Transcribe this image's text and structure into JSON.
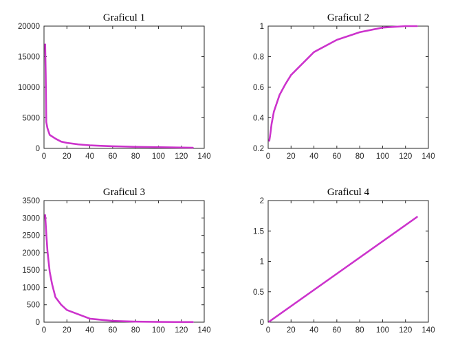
{
  "chart_data": [
    {
      "type": "line",
      "title": "Graficul 1",
      "xlabel": "",
      "ylabel": "",
      "xlim": [
        0,
        140
      ],
      "ylim": [
        0,
        20000
      ],
      "xticks": [
        0,
        20,
        40,
        60,
        80,
        100,
        120,
        140
      ],
      "yticks": [
        0,
        5000,
        10000,
        15000,
        20000
      ],
      "grid": false,
      "color": "#CC33CC",
      "x": [
        1,
        1.5,
        2,
        3,
        5,
        10,
        15,
        20,
        30,
        40,
        50,
        60,
        70,
        80,
        90,
        100,
        110,
        120,
        130
      ],
      "y": [
        17000,
        12000,
        4300,
        3300,
        2200,
        1600,
        1100,
        900,
        650,
        500,
        420,
        350,
        300,
        250,
        220,
        190,
        160,
        130,
        110
      ]
    },
    {
      "type": "line",
      "title": "Graficul 2",
      "xlabel": "",
      "ylabel": "",
      "xlim": [
        0,
        140
      ],
      "ylim": [
        0.2,
        1
      ],
      "xticks": [
        0,
        20,
        40,
        60,
        80,
        100,
        120,
        140
      ],
      "yticks": [
        0.2,
        0.4,
        0.6,
        0.8,
        1
      ],
      "grid": false,
      "color": "#CC33CC",
      "x": [
        1,
        2,
        3,
        5,
        10,
        15,
        20,
        40,
        60,
        80,
        100,
        120,
        130
      ],
      "y": [
        0.25,
        0.3,
        0.36,
        0.44,
        0.55,
        0.62,
        0.68,
        0.83,
        0.91,
        0.96,
        0.99,
        1.0,
        1.0
      ]
    },
    {
      "type": "line",
      "title": "Graficul 3",
      "xlabel": "",
      "ylabel": "",
      "xlim": [
        0,
        140
      ],
      "ylim": [
        0,
        3500
      ],
      "xticks": [
        0,
        20,
        40,
        60,
        80,
        100,
        120,
        140
      ],
      "yticks": [
        0,
        500,
        1000,
        1500,
        2000,
        2500,
        3000,
        3500
      ],
      "grid": false,
      "color": "#CC33CC",
      "x": [
        1,
        2,
        3,
        5,
        7,
        10,
        15,
        20,
        40,
        60,
        80,
        100,
        120,
        130
      ],
      "y": [
        3080,
        2550,
        2050,
        1450,
        1100,
        720,
        500,
        350,
        100,
        35,
        15,
        8,
        4,
        3
      ]
    },
    {
      "type": "line",
      "title": "Graficul 4",
      "xlabel": "",
      "ylabel": "",
      "xlim": [
        0,
        140
      ],
      "ylim": [
        0,
        2
      ],
      "xticks": [
        0,
        20,
        40,
        60,
        80,
        100,
        120,
        140
      ],
      "yticks": [
        0,
        0.5,
        1,
        1.5,
        2
      ],
      "grid": false,
      "color": "#CC33CC",
      "x": [
        1,
        130
      ],
      "y": [
        0.01,
        1.73
      ]
    }
  ]
}
